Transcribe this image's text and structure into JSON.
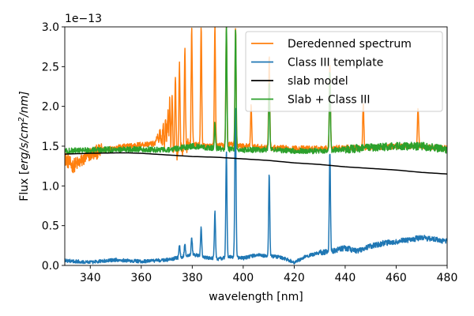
{
  "chart_data": {
    "type": "line",
    "xlabel": "wavelength [nm]",
    "ylabel_prefix": "Flux [",
    "ylabel_unit": "erg/s/cm",
    "ylabel_exp": "2",
    "ylabel_suffix": "/nm]",
    "y_offset_label": "1e−13",
    "xlim": [
      330,
      480
    ],
    "ylim": [
      0.0,
      3.0
    ],
    "y_scale_factor": 1e-13,
    "xticks": [
      340,
      360,
      380,
      400,
      420,
      440,
      460,
      480
    ],
    "xtick_labels": [
      "340",
      "360",
      "380",
      "400",
      "420",
      "440",
      "460",
      "480"
    ],
    "yticks": [
      0.0,
      0.5,
      1.0,
      1.5,
      2.0,
      2.5,
      3.0
    ],
    "ytick_labels": [
      "0.0",
      "0.5",
      "1.0",
      "1.5",
      "2.0",
      "2.5",
      "3.0"
    ],
    "grid": false,
    "legend_position": "top-right",
    "series": [
      {
        "name": "Deredenned spectrum",
        "color": "#ff7f0e",
        "x": [
          330,
          333,
          336,
          340,
          345,
          350,
          355,
          360,
          365,
          368,
          370,
          372,
          375,
          378,
          380,
          385,
          390,
          395,
          400,
          410,
          420,
          430,
          440,
          450,
          460,
          470,
          480
        ],
        "y": [
          1.35,
          1.25,
          1.3,
          1.4,
          1.45,
          1.48,
          1.5,
          1.52,
          1.53,
          1.55,
          1.45,
          1.35,
          1.42,
          1.5,
          1.52,
          1.5,
          1.5,
          1.52,
          1.5,
          1.48,
          1.47,
          1.47,
          1.48,
          1.48,
          1.5,
          1.5,
          1.47
        ],
        "emission_lines": [
          {
            "x": 366.2,
            "y": 1.62
          },
          {
            "x": 367.4,
            "y": 1.7
          },
          {
            "x": 368.6,
            "y": 1.75
          },
          {
            "x": 369.6,
            "y": 1.82
          },
          {
            "x": 370.4,
            "y": 1.92
          },
          {
            "x": 371.2,
            "y": 2.05
          },
          {
            "x": 372.1,
            "y": 2.15
          },
          {
            "x": 373.4,
            "y": 2.4
          },
          {
            "x": 375.0,
            "y": 2.55
          },
          {
            "x": 377.1,
            "y": 2.7
          },
          {
            "x": 379.8,
            "y": 3.0
          },
          {
            "x": 383.5,
            "y": 3.0
          },
          {
            "x": 388.9,
            "y": 3.0
          },
          {
            "x": 393.4,
            "y": 3.0
          },
          {
            "x": 397.0,
            "y": 3.0
          },
          {
            "x": 403.1,
            "y": 2.0
          },
          {
            "x": 410.2,
            "y": 2.65
          },
          {
            "x": 434.0,
            "y": 2.55
          },
          {
            "x": 447.1,
            "y": 2.05
          },
          {
            "x": 468.6,
            "y": 2.0
          }
        ]
      },
      {
        "name": "Class III template",
        "color": "#1f77b4",
        "x": [
          330,
          340,
          350,
          360,
          365,
          370,
          375,
          380,
          385,
          390,
          395,
          400,
          405,
          410,
          415,
          420,
          425,
          430,
          435,
          440,
          445,
          450,
          455,
          460,
          465,
          470,
          475,
          480
        ],
        "y": [
          0.06,
          0.04,
          0.07,
          0.05,
          0.06,
          0.07,
          0.1,
          0.14,
          0.1,
          0.08,
          0.11,
          0.09,
          0.13,
          0.12,
          0.1,
          0.04,
          0.12,
          0.16,
          0.18,
          0.22,
          0.18,
          0.24,
          0.28,
          0.3,
          0.32,
          0.35,
          0.33,
          0.3
        ],
        "emission_lines": [
          {
            "x": 375.0,
            "y": 0.25
          },
          {
            "x": 377.1,
            "y": 0.28
          },
          {
            "x": 379.8,
            "y": 0.35
          },
          {
            "x": 383.5,
            "y": 0.48
          },
          {
            "x": 388.9,
            "y": 0.68
          },
          {
            "x": 393.4,
            "y": 1.45
          },
          {
            "x": 396.8,
            "y": 0.78
          },
          {
            "x": 397.0,
            "y": 1.5
          },
          {
            "x": 410.2,
            "y": 1.15
          },
          {
            "x": 434.0,
            "y": 1.43
          }
        ]
      },
      {
        "name": "slab model",
        "color": "#000000",
        "x": [
          330,
          340,
          350,
          355,
          360,
          370,
          380,
          390,
          400,
          410,
          420,
          430,
          440,
          450,
          460,
          470,
          480
        ],
        "y": [
          1.4,
          1.41,
          1.415,
          1.415,
          1.41,
          1.39,
          1.37,
          1.36,
          1.34,
          1.32,
          1.29,
          1.27,
          1.24,
          1.22,
          1.2,
          1.17,
          1.15
        ]
      },
      {
        "name": "Slab + Class III",
        "color": "#2ca02c",
        "x": [
          330,
          340,
          350,
          360,
          370,
          380,
          390,
          400,
          410,
          420,
          430,
          440,
          450,
          460,
          470,
          480
        ],
        "y": [
          1.44,
          1.45,
          1.46,
          1.46,
          1.45,
          1.5,
          1.47,
          1.45,
          1.46,
          1.44,
          1.44,
          1.46,
          1.48,
          1.5,
          1.5,
          1.46
        ],
        "emission_lines": [
          {
            "x": 388.9,
            "y": 1.8
          },
          {
            "x": 393.4,
            "y": 3.0
          },
          {
            "x": 397.0,
            "y": 3.0
          },
          {
            "x": 410.2,
            "y": 2.3
          },
          {
            "x": 434.0,
            "y": 2.45
          }
        ]
      }
    ]
  }
}
